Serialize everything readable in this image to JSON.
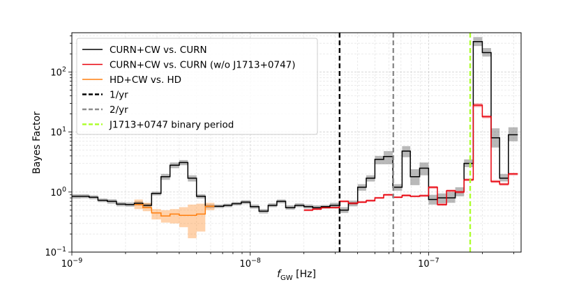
{
  "chart_data": {
    "type": "line",
    "xlabel": "f_GW [Hz]",
    "xlabel_main": "f",
    "xlabel_sub": "GW",
    "xlabel_unit": " [Hz]",
    "ylabel": "Bayes Factor",
    "xscale": "log",
    "yscale": "log",
    "xlim": [
      1e-09,
      3.3e-07
    ],
    "ylim": [
      0.1,
      450
    ],
    "grid": "both",
    "legend_position": "upper-left",
    "x_tick_labels": [
      {
        "value": 1e-09,
        "base": "10",
        "exp": "−9"
      },
      {
        "value": 1e-08,
        "base": "10",
        "exp": "−8"
      },
      {
        "value": 1e-07,
        "base": "10",
        "exp": "−7"
      }
    ],
    "y_tick_labels": [
      {
        "value": 0.1,
        "base": "10",
        "exp": "−1"
      },
      {
        "value": 1,
        "base": "10",
        "exp": "0"
      },
      {
        "value": 10,
        "base": "10",
        "exp": "1"
      },
      {
        "value": 100,
        "base": "10",
        "exp": "2"
      }
    ],
    "step_frequencies": [
      1e-09,
      1.12e-09,
      1.25e-09,
      1.4e-09,
      1.58e-09,
      1.78e-09,
      2e-09,
      2.24e-09,
      2.5e-09,
      2.8e-09,
      3.16e-09,
      3.55e-09,
      4e-09,
      4.47e-09,
      5e-09,
      5.6e-09,
      6.3e-09,
      7.1e-09,
      7.9e-09,
      8.9e-09,
      1e-08,
      1.12e-08,
      1.26e-08,
      1.41e-08,
      1.58e-08,
      1.78e-08,
      2e-08,
      2.24e-08,
      2.5e-08,
      2.8e-08,
      3.16e-08,
      3.55e-08,
      4e-08,
      4.47e-08,
      5e-08,
      5.6e-08,
      6.3e-08,
      7.1e-08,
      7.9e-08,
      8.9e-08,
      1e-07,
      1.12e-07,
      1.26e-07,
      1.41e-07,
      1.58e-07,
      1.78e-07,
      2e-07,
      2.24e-07,
      2.5e-07,
      2.8e-07,
      3.16e-07
    ],
    "series": [
      {
        "name": "CURN+CW vs. CURN",
        "color": "#000000",
        "band_color": "#808080",
        "values": [
          0.85,
          0.85,
          0.82,
          0.73,
          0.7,
          0.63,
          0.62,
          0.65,
          0.6,
          0.95,
          1.8,
          2.8,
          3.1,
          1.7,
          0.85,
          0.58,
          0.58,
          0.6,
          0.64,
          0.68,
          0.57,
          0.48,
          0.6,
          0.7,
          0.55,
          0.6,
          0.57,
          0.55,
          0.57,
          0.6,
          0.5,
          0.65,
          1.2,
          1.7,
          3.5,
          3.9,
          1.2,
          4.8,
          1.8,
          2.5,
          0.75,
          0.8,
          0.8,
          1.0,
          3.0,
          320,
          210,
          8.0,
          1.7,
          9.0
        ],
        "lower": [
          0.78,
          0.79,
          0.76,
          0.68,
          0.64,
          0.58,
          0.57,
          0.6,
          0.56,
          0.88,
          1.6,
          2.5,
          2.8,
          1.5,
          0.78,
          0.54,
          0.54,
          0.56,
          0.6,
          0.63,
          0.53,
          0.44,
          0.56,
          0.65,
          0.51,
          0.56,
          0.53,
          0.51,
          0.53,
          0.55,
          0.45,
          0.58,
          1.05,
          1.5,
          2.9,
          2.9,
          1.05,
          3.8,
          1.3,
          1.9,
          0.62,
          0.65,
          0.66,
          0.85,
          2.6,
          270,
          180,
          5.5,
          1.5,
          7.0
        ],
        "upper": [
          0.92,
          0.92,
          0.88,
          0.78,
          0.76,
          0.68,
          0.67,
          0.7,
          0.65,
          1.02,
          2.0,
          3.1,
          3.4,
          1.9,
          0.92,
          0.62,
          0.62,
          0.64,
          0.68,
          0.73,
          0.62,
          0.52,
          0.65,
          0.75,
          0.6,
          0.65,
          0.62,
          0.6,
          0.61,
          0.66,
          0.56,
          0.72,
          1.35,
          1.9,
          4.0,
          4.8,
          1.35,
          5.8,
          2.4,
          3.1,
          0.9,
          0.95,
          1.0,
          1.2,
          3.5,
          380,
          250,
          11.5,
          2.0,
          12.0
        ]
      },
      {
        "name": "CURN+CW vs. CURN (w/o J1713+0747)",
        "color": "#e8000b",
        "band_color": "#e8000b",
        "start_index": 26,
        "values": [
          0.5,
          0.52,
          0.55,
          0.55,
          0.7,
          0.65,
          0.68,
          0.72,
          0.8,
          0.9,
          0.82,
          0.88,
          0.85,
          0.87,
          1.2,
          0.62,
          1.05,
          1.0,
          1.6,
          28,
          18,
          1.5,
          1.35,
          2.0
        ],
        "lower": [
          0.48,
          0.5,
          0.53,
          0.53,
          0.67,
          0.62,
          0.65,
          0.69,
          0.77,
          0.86,
          0.79,
          0.84,
          0.82,
          0.83,
          1.14,
          0.59,
          1.0,
          0.95,
          1.52,
          26,
          17,
          1.42,
          1.28,
          1.9
        ],
        "upper": [
          0.52,
          0.54,
          0.57,
          0.57,
          0.73,
          0.68,
          0.71,
          0.75,
          0.83,
          0.94,
          0.85,
          0.92,
          0.88,
          0.91,
          1.26,
          0.65,
          1.1,
          1.05,
          1.68,
          30,
          19,
          1.58,
          1.42,
          2.1
        ]
      },
      {
        "name": "HD+CW vs. HD",
        "color": "#ff7f0e",
        "band_color": "#ff7f0e",
        "start_index": 7,
        "values": [
          0.62,
          0.55,
          0.45,
          0.4,
          0.43,
          0.41,
          0.41,
          0.43,
          0.58
        ],
        "lower": [
          0.52,
          0.48,
          0.35,
          0.31,
          0.3,
          0.26,
          0.17,
          0.22,
          0.5
        ],
        "upper": [
          0.75,
          0.66,
          0.52,
          0.5,
          0.52,
          0.56,
          0.62,
          0.64,
          0.66
        ]
      }
    ],
    "vlines": [
      {
        "name": "1/yr",
        "x": 3.17e-08,
        "color": "#000000"
      },
      {
        "name": "2/yr",
        "x": 6.34e-08,
        "color": "#8c8c8c"
      },
      {
        "name": "J1713+0747 binary period",
        "x": 1.71e-07,
        "color": "#adff2f"
      }
    ]
  }
}
